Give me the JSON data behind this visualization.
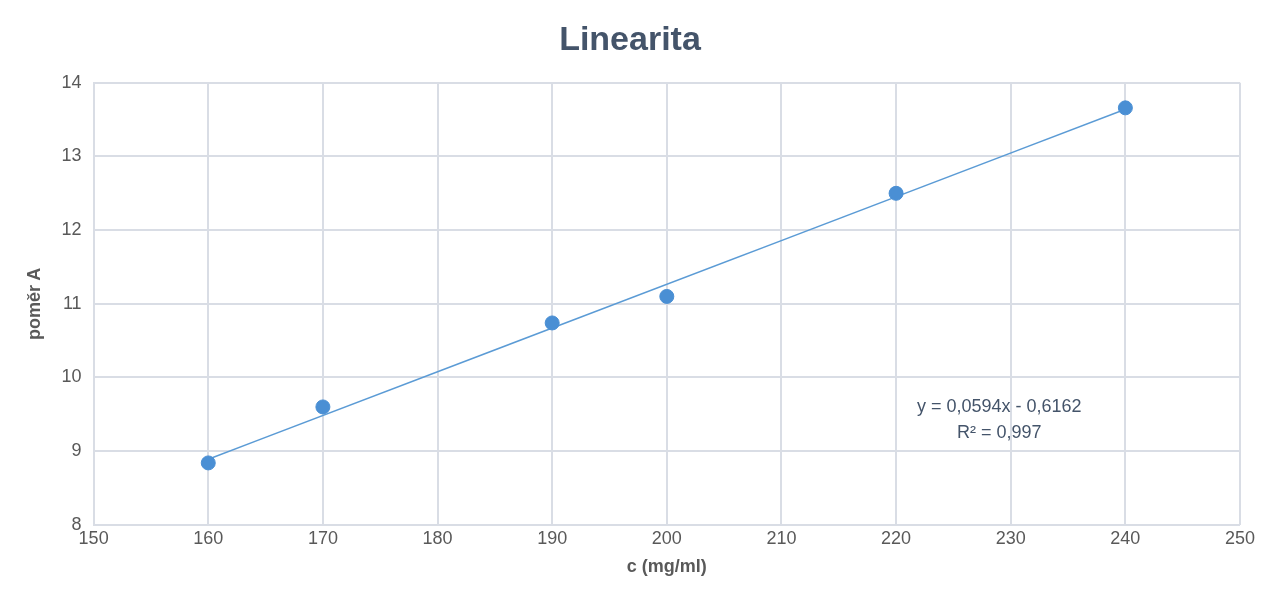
{
  "chart_data": {
    "type": "scatter",
    "title": "Linearita",
    "xlabel": "c (mg/ml)",
    "ylabel": "poměr A",
    "x": [
      160,
      170,
      190,
      200,
      220,
      240
    ],
    "series": [
      {
        "color": "#4a8fd4",
        "values": [
          8.84,
          9.6,
          10.74,
          11.1,
          12.5,
          13.66
        ],
        "marker": "circle"
      },
      {
        "type": "line",
        "color": "#5b9bd5",
        "x": [
          160,
          240
        ],
        "values": [
          8.89,
          13.64
        ],
        "marker": "none",
        "line_style": "solid"
      }
    ],
    "xlim": [
      150,
      250
    ],
    "xticks": [
      150,
      160,
      170,
      180,
      190,
      200,
      210,
      220,
      230,
      240,
      250
    ],
    "ylim": [
      8,
      14
    ],
    "yticks": [
      8,
      9,
      10,
      11,
      12,
      13,
      14
    ],
    "grid": true,
    "legend": false,
    "annotations": [
      "y = 0,0594x - 0,6162\nR² = 0,997"
    ]
  }
}
